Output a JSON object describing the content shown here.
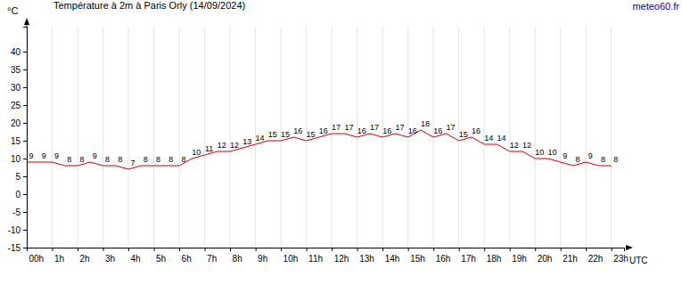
{
  "chart_data": {
    "type": "line",
    "title": "Température à 2m à Paris Orly (14/09/2024)",
    "ylabel": "°C",
    "xlabel": "UTC",
    "annotations": [
      {
        "text": "meteo60.fr"
      }
    ],
    "x": [
      0,
      0.5,
      1,
      1.5,
      2,
      2.5,
      3,
      3.5,
      4,
      4.5,
      5,
      5.5,
      6,
      6.5,
      7,
      7.5,
      8,
      8.5,
      9,
      9.5,
      10,
      10.5,
      11,
      11.5,
      12,
      12.5,
      13,
      13.5,
      14,
      14.5,
      15,
      15.5,
      16,
      16.5,
      17,
      17.5,
      18,
      18.5,
      19,
      19.5,
      20,
      20.5,
      21,
      21.5,
      22,
      22.5,
      23
    ],
    "values": [
      9,
      9,
      9,
      8,
      8,
      9,
      8,
      8,
      7,
      8,
      8,
      8,
      8,
      10,
      11,
      12,
      12,
      13,
      14,
      15,
      15,
      16,
      15,
      16,
      17,
      17,
      16,
      17,
      16,
      17,
      16,
      18,
      16,
      17,
      15,
      16,
      14,
      14,
      12,
      12,
      10,
      10,
      9,
      8,
      9,
      8,
      8
    ],
    "color": "#cc0000",
    "data_labels": true,
    "grid": true,
    "xlim": [
      0,
      23.5
    ],
    "xticks": [
      {
        "value": 0,
        "label": "00h"
      },
      {
        "value": 1,
        "label": "1h"
      },
      {
        "value": 2,
        "label": "2h"
      },
      {
        "value": 3,
        "label": "3h"
      },
      {
        "value": 4,
        "label": "4h"
      },
      {
        "value": 5,
        "label": "5h"
      },
      {
        "value": 6,
        "label": "6h"
      },
      {
        "value": 7,
        "label": "7h"
      },
      {
        "value": 8,
        "label": "8h"
      },
      {
        "value": 9,
        "label": "9h"
      },
      {
        "value": 10,
        "label": "10h"
      },
      {
        "value": 11,
        "label": "11h"
      },
      {
        "value": 12,
        "label": "12h"
      },
      {
        "value": 13,
        "label": "13h"
      },
      {
        "value": 14,
        "label": "14h"
      },
      {
        "value": 15,
        "label": "15h"
      },
      {
        "value": 16,
        "label": "16h"
      },
      {
        "value": 17,
        "label": "17h"
      },
      {
        "value": 18,
        "label": "18h"
      },
      {
        "value": 19,
        "label": "19h"
      },
      {
        "value": 20,
        "label": "20h"
      },
      {
        "value": 21,
        "label": "21h"
      },
      {
        "value": 22,
        "label": "22h"
      },
      {
        "value": 23,
        "label": "23h"
      }
    ],
    "ylim": [
      -15,
      47
    ],
    "yticks": [
      -15,
      -10,
      -5,
      0,
      5,
      10,
      15,
      20,
      25,
      30,
      35,
      40
    ]
  }
}
